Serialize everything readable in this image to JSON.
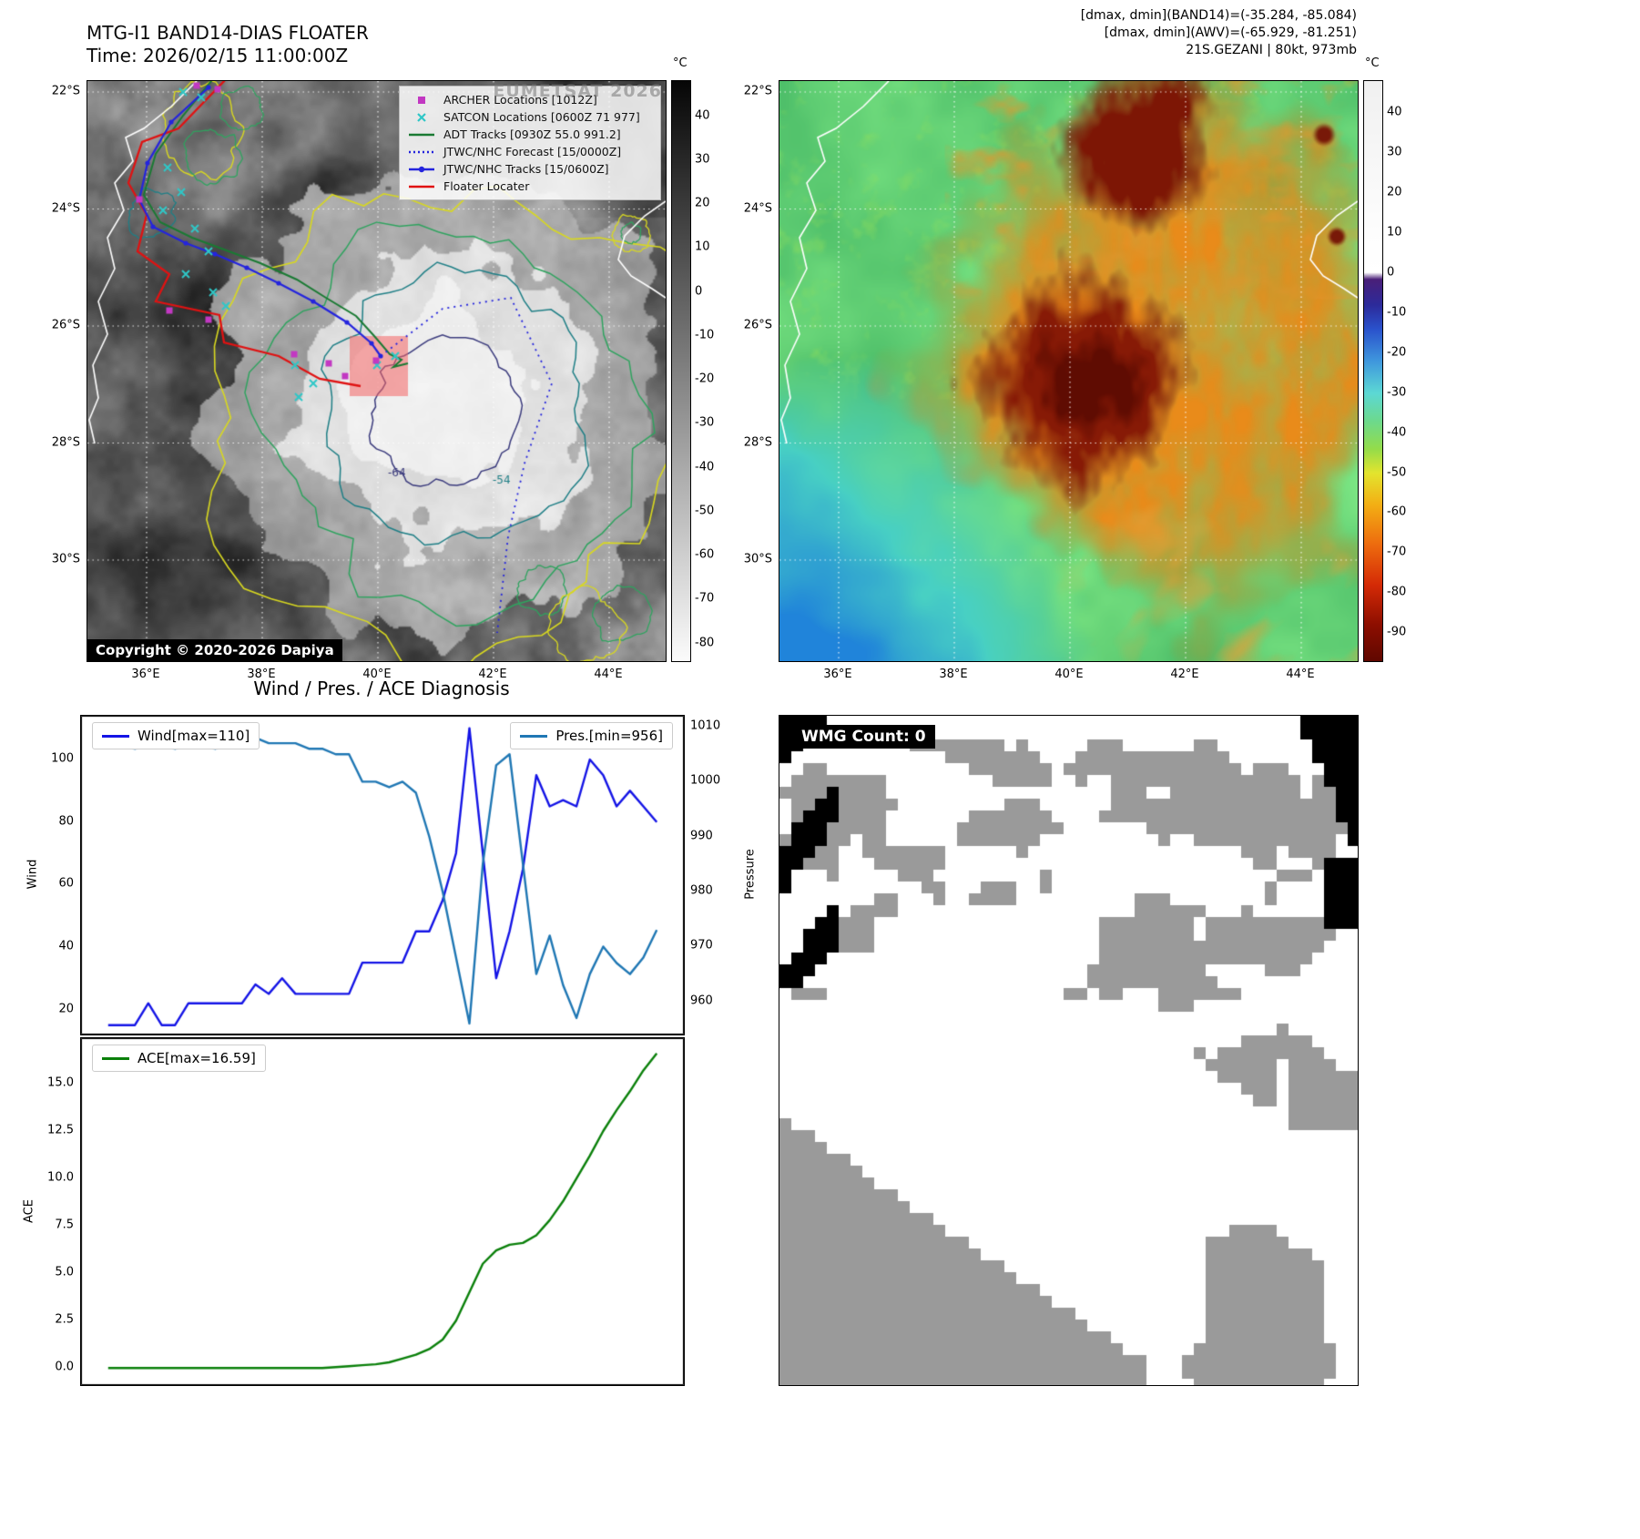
{
  "band14": {
    "title": "MTG-I1 BAND14-DIAS FLOATER",
    "time_label": "Time: 2026/02/15 11:00:00Z",
    "copyright": "Copyright © 2020-2026 Dapiya",
    "watermark": "EUMETSAT 2026",
    "colorbar": {
      "unit": "°C",
      "ticks": [
        "40",
        "30",
        "20",
        "10",
        "0",
        "-10",
        "-20",
        "-30",
        "-40",
        "-50",
        "-60",
        "-70",
        "-80"
      ]
    },
    "x_ticks": [
      "36°E",
      "38°E",
      "40°E",
      "42°E",
      "44°E"
    ],
    "y_ticks": [
      "22°S",
      "24°S",
      "26°S",
      "28°S",
      "30°S"
    ],
    "contour_labels": [
      "-64",
      "-54"
    ],
    "legend": [
      {
        "label": "ARCHER Locations [1012Z]",
        "marker": "square",
        "color": "#c238c2"
      },
      {
        "label": "SATCON Locations [0600Z 71 977]",
        "marker": "x",
        "color": "#2fc7c7"
      },
      {
        "label": "ADT Tracks [0930Z 55.0 991.2]",
        "marker": "line",
        "color": "#1a7a33"
      },
      {
        "label": "JTWC/NHC Forecast [15/0000Z]",
        "marker": "dotted",
        "color": "#2424dd"
      },
      {
        "label": "JTWC/NHC Tracks [15/0600Z]",
        "marker": "line-dot",
        "color": "#2424dd"
      },
      {
        "label": "Floater Locater",
        "marker": "line",
        "color": "#e01212"
      }
    ]
  },
  "awv": {
    "header_lines": [
      "[dmax, dmin](BAND14)=(-35.284, -85.084)",
      "[dmax, dmin](AWV)=(-65.929, -81.251)",
      "21S.GEZANI | 80kt, 973mb"
    ],
    "colorbar": {
      "unit": "°C",
      "ticks": [
        "40",
        "30",
        "20",
        "10",
        "0",
        "-10",
        "-20",
        "-30",
        "-40",
        "-50",
        "-60",
        "-70",
        "-80",
        "-90"
      ]
    },
    "x_ticks": [
      "36°E",
      "38°E",
      "40°E",
      "42°E",
      "44°E"
    ],
    "y_ticks": [
      "22°S",
      "24°S",
      "26°S",
      "28°S",
      "30°S"
    ]
  },
  "diagnosis": {
    "title": "Wind / Pres. / ACE Diagnosis"
  },
  "wmg": {
    "label": "WMG Count: 0",
    "mask_color": "#9a9a9a"
  },
  "chart_data": [
    {
      "type": "line",
      "title": "Wind / Pres. / ACE Diagnosis",
      "x_count": 42,
      "xlabel": "",
      "grid": false,
      "legend_position": {
        "wind": "upper left",
        "pressure": "upper right"
      },
      "series": [
        {
          "name": "Wind[max=110]",
          "color": "#1414e6",
          "axis": "left",
          "values": [
            15,
            15,
            15,
            22,
            15,
            15,
            22,
            22,
            22,
            22,
            22,
            28,
            25,
            30,
            25,
            25,
            25,
            25,
            25,
            35,
            35,
            35,
            35,
            45,
            45,
            55,
            70,
            110,
            70,
            30,
            45,
            65,
            95,
            85,
            87,
            85,
            100,
            95,
            85,
            90,
            85,
            80
          ]
        },
        {
          "name": "Pres.[min=956]",
          "color": "#1f77b4",
          "axis": "right",
          "values": [
            1007,
            1007,
            1006,
            1007,
            1007,
            1006,
            1007,
            1007,
            1006,
            1007,
            1007,
            1008,
            1007,
            1007,
            1007,
            1006,
            1006,
            1005,
            1005,
            1000,
            1000,
            999,
            1000,
            998,
            990,
            980,
            968,
            956,
            985,
            1003,
            1005,
            985,
            965,
            972,
            963,
            957,
            965,
            970,
            967,
            965,
            968,
            973
          ]
        }
      ],
      "left_axis": {
        "label": "Wind",
        "ticks": [
          20,
          40,
          60,
          80,
          100
        ],
        "tick_labels": [
          "20",
          "40",
          "60",
          "80",
          "100"
        ],
        "range": [
          12,
          114
        ]
      },
      "right_axis": {
        "label": "Pressure",
        "ticks": [
          960,
          970,
          980,
          990,
          1000,
          1010
        ],
        "tick_labels": [
          "960",
          "970",
          "980",
          "990",
          "1000",
          "1010"
        ],
        "range": [
          954,
          1012
        ]
      }
    },
    {
      "type": "line",
      "x_count": 42,
      "xlabel": "",
      "grid": false,
      "legend_position": {
        "ace": "upper left"
      },
      "series": [
        {
          "name": "ACE[max=16.59]",
          "color": "#0a800a",
          "axis": "left",
          "values": [
            0,
            0,
            0,
            0,
            0,
            0,
            0,
            0,
            0,
            0,
            0,
            0,
            0,
            0,
            0,
            0,
            0,
            0.05,
            0.1,
            0.15,
            0.2,
            0.3,
            0.5,
            0.7,
            1,
            1.5,
            2.5,
            4,
            5.5,
            6.2,
            6.5,
            6.6,
            7,
            7.8,
            8.8,
            10,
            11.2,
            12.5,
            13.6,
            14.6,
            15.7,
            16.59
          ]
        }
      ],
      "left_axis": {
        "label": "ACE",
        "ticks": [
          0,
          2.5,
          5,
          7.5,
          10,
          12.5,
          15
        ],
        "tick_labels": [
          "0.0",
          "2.5",
          "5.0",
          "7.5",
          "10.0",
          "12.5",
          "15.0"
        ],
        "range": [
          -0.9,
          17.4
        ]
      }
    }
  ]
}
